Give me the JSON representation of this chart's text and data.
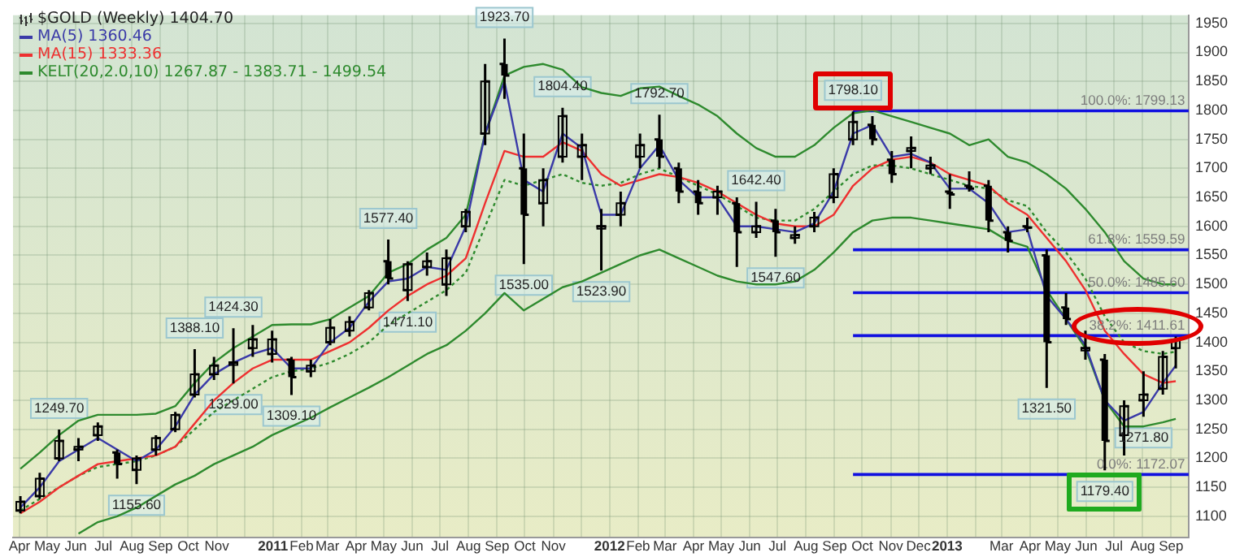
{
  "chart_data": {
    "type": "candlestick",
    "title": "$GOLD (Weekly) 1404.70",
    "x": [
      "2010-04-02",
      "2010-04-23",
      "2010-05-14",
      "2010-06-04",
      "2010-06-25",
      "2010-07-16",
      "2010-08-06",
      "2010-08-27",
      "2010-09-17",
      "2010-10-08",
      "2010-10-29",
      "2010-11-19",
      "2010-12-10",
      "2010-12-31",
      "2011-01-21",
      "2011-02-11",
      "2011-03-04",
      "2011-03-25",
      "2011-04-15",
      "2011-05-06",
      "2011-05-27",
      "2011-06-17",
      "2011-07-08",
      "2011-07-29",
      "2011-08-19",
      "2011-09-09",
      "2011-09-30",
      "2011-10-21",
      "2011-11-11",
      "2011-12-02",
      "2011-12-23",
      "2012-01-13",
      "2012-02-03",
      "2012-02-24",
      "2012-03-16",
      "2012-04-06",
      "2012-04-27",
      "2012-05-18",
      "2012-06-08",
      "2012-06-29",
      "2012-07-20",
      "2012-08-10",
      "2012-08-31",
      "2012-09-21",
      "2012-10-12",
      "2012-11-02",
      "2012-11-23",
      "2012-12-14",
      "2013-01-04",
      "2013-01-25",
      "2013-02-15",
      "2013-03-08",
      "2013-03-29",
      "2013-04-19",
      "2013-05-10",
      "2013-05-31",
      "2013-06-21",
      "2013-07-12",
      "2013-08-02",
      "2013-08-23",
      "2013-09-06"
    ],
    "ohlc": [
      [
        1110,
        1135,
        1105,
        1125
      ],
      [
        1135,
        1175,
        1130,
        1165
      ],
      [
        1200,
        1249.7,
        1195,
        1230
      ],
      [
        1215,
        1235,
        1195,
        1220
      ],
      [
        1240,
        1262,
        1230,
        1255
      ],
      [
        1210,
        1215,
        1165,
        1190
      ],
      [
        1180,
        1205,
        1155.6,
        1200
      ],
      [
        1215,
        1240,
        1205,
        1235
      ],
      [
        1250,
        1280,
        1245,
        1275
      ],
      [
        1310,
        1388.1,
        1305,
        1345
      ],
      [
        1345,
        1375,
        1335,
        1360
      ],
      [
        1365,
        1424.3,
        1329,
        1365
      ],
      [
        1390,
        1430,
        1375,
        1405
      ],
      [
        1380,
        1420,
        1365,
        1405
      ],
      [
        1370,
        1375,
        1309.1,
        1340
      ],
      [
        1350,
        1370,
        1340,
        1360
      ],
      [
        1400,
        1440,
        1395,
        1425
      ],
      [
        1420,
        1445,
        1410,
        1435
      ],
      [
        1460,
        1490,
        1455,
        1485
      ],
      [
        1540,
        1577.4,
        1500,
        1510
      ],
      [
        1490,
        1540,
        1471.1,
        1535
      ],
      [
        1530,
        1555,
        1515,
        1540
      ],
      [
        1500,
        1560,
        1480,
        1545
      ],
      [
        1600,
        1630,
        1590,
        1625
      ],
      [
        1760,
        1880,
        1740,
        1850
      ],
      [
        1880,
        1923.7,
        1820,
        1860
      ],
      [
        1700,
        1760,
        1535,
        1620
      ],
      [
        1640,
        1700,
        1600,
        1680
      ],
      [
        1720,
        1804.4,
        1710,
        1790
      ],
      [
        1720,
        1760,
        1680,
        1740
      ],
      [
        1600,
        1630,
        1523.9,
        1600
      ],
      [
        1620,
        1660,
        1600,
        1640
      ],
      [
        1720,
        1760,
        1700,
        1740
      ],
      [
        1750,
        1792.7,
        1700,
        1720
      ],
      [
        1700,
        1710,
        1640,
        1660
      ],
      [
        1660,
        1680,
        1620,
        1640
      ],
      [
        1650,
        1670,
        1620,
        1660
      ],
      [
        1640,
        1650,
        1530,
        1590
      ],
      [
        1590,
        1642.4,
        1580,
        1600
      ],
      [
        1610,
        1630,
        1547.6,
        1590
      ],
      [
        1580,
        1600,
        1570,
        1585
      ],
      [
        1600,
        1625,
        1590,
        1615
      ],
      [
        1650,
        1700,
        1640,
        1690
      ],
      [
        1750,
        1798.1,
        1740,
        1780
      ],
      [
        1775,
        1790,
        1740,
        1750
      ],
      [
        1715,
        1730,
        1675,
        1690
      ],
      [
        1730,
        1755,
        1700,
        1735
      ],
      [
        1700,
        1720,
        1690,
        1705
      ],
      [
        1660,
        1690,
        1630,
        1655
      ],
      [
        1670,
        1695,
        1660,
        1665
      ],
      [
        1670,
        1680,
        1590,
        1610
      ],
      [
        1590,
        1600,
        1555,
        1575
      ],
      [
        1600,
        1615,
        1590,
        1598
      ],
      [
        1550,
        1560,
        1321.5,
        1400
      ],
      [
        1460,
        1485,
        1430,
        1440
      ],
      [
        1390,
        1420,
        1370,
        1390
      ],
      [
        1370,
        1380,
        1179.4,
        1230
      ],
      [
        1240,
        1300,
        1205,
        1290
      ],
      [
        1300,
        1350,
        1271.8,
        1310
      ],
      [
        1320,
        1385,
        1310,
        1375
      ],
      [
        1390,
        1410,
        1355,
        1404.7
      ]
    ],
    "color": "#000000",
    "series": [
      {
        "name": "MA(5) 1360.46",
        "type": "line",
        "color": "#3a3aa8",
        "values": [
          1115,
          1150,
          1195,
          1215,
          1235,
          1215,
          1195,
          1215,
          1255,
          1310,
          1345,
          1365,
          1380,
          1390,
          1355,
          1355,
          1400,
          1425,
          1470,
          1505,
          1510,
          1530,
          1525,
          1600,
          1760,
          1850,
          1680,
          1660,
          1760,
          1735,
          1620,
          1620,
          1700,
          1740,
          1680,
          1650,
          1650,
          1600,
          1600,
          1595,
          1590,
          1605,
          1660,
          1760,
          1775,
          1720,
          1725,
          1710,
          1665,
          1665,
          1640,
          1590,
          1595,
          1480,
          1440,
          1395,
          1300,
          1265,
          1280,
          1330,
          1360
        ]
      },
      {
        "name": "MA(15) 1333.36",
        "type": "line",
        "color": "#ee3030",
        "values": [
          1105,
          1125,
          1150,
          1170,
          1190,
          1195,
          1200,
          1205,
          1220,
          1260,
          1300,
          1330,
          1355,
          1370,
          1370,
          1370,
          1385,
          1400,
          1425,
          1455,
          1480,
          1500,
          1515,
          1545,
          1640,
          1730,
          1720,
          1720,
          1745,
          1730,
          1690,
          1670,
          1680,
          1690,
          1685,
          1675,
          1660,
          1640,
          1620,
          1605,
          1600,
          1600,
          1620,
          1670,
          1700,
          1715,
          1720,
          1710,
          1690,
          1680,
          1670,
          1640,
          1620,
          1580,
          1540,
          1490,
          1420,
          1380,
          1345,
          1330,
          1333
        ]
      },
      {
        "name": "KELT(20,2.0,10) 1267.87 - 1383.71 - 1499.54",
        "type": "line",
        "color": "#2e8a2e",
        "values": [
          1182,
          1210,
          1240,
          1265,
          1275,
          1275,
          1275,
          1277,
          1290,
          1330,
          1365,
          1390,
          1410,
          1430,
          1431,
          1431,
          1440,
          1460,
          1480,
          1520,
          1535,
          1560,
          1580,
          1620,
          1760,
          1860,
          1875,
          1880,
          1870,
          1840,
          1830,
          1825,
          1838,
          1841,
          1825,
          1810,
          1790,
          1760,
          1735,
          1720,
          1720,
          1740,
          1770,
          1795,
          1800,
          1790,
          1780,
          1770,
          1760,
          1740,
          1750,
          1720,
          1710,
          1690,
          1665,
          1630,
          1590,
          1540,
          1510,
          1500,
          1500
        ]
      },
      {
        "type": "line",
        "color": "#2e8a2e",
        "line_style": "dotted",
        "values": [
          1110,
          1130,
          1150,
          1170,
          1185,
          1190,
          1195,
          1205,
          1220,
          1250,
          1280,
          1300,
          1320,
          1340,
          1350,
          1355,
          1365,
          1380,
          1400,
          1430,
          1450,
          1470,
          1490,
          1520,
          1600,
          1680,
          1670,
          1680,
          1690,
          1675,
          1670,
          1675,
          1690,
          1700,
          1685,
          1670,
          1655,
          1635,
          1615,
          1610,
          1610,
          1630,
          1660,
          1690,
          1705,
          1705,
          1700,
          1690,
          1680,
          1670,
          1665,
          1645,
          1635,
          1590,
          1555,
          1510,
          1445,
          1400,
          1385,
          1380,
          1384
        ]
      },
      {
        "type": "line",
        "color": "#2e8a2e",
        "values": [
          null,
          null,
          null,
          1070,
          1090,
          1100,
          1115,
          1135,
          1155,
          1170,
          1190,
          1205,
          1220,
          1240,
          1255,
          1270,
          1288,
          1305,
          1322,
          1340,
          1360,
          1380,
          1395,
          1420,
          1450,
          1485,
          1455,
          1475,
          1495,
          1505,
          1520,
          1535,
          1550,
          1560,
          1545,
          1530,
          1515,
          1505,
          1500,
          1500,
          1505,
          1525,
          1555,
          1590,
          1610,
          1615,
          1615,
          1610,
          1605,
          1600,
          1595,
          1575,
          1565,
          1490,
          1440,
          1390,
          1300,
          1255,
          1255,
          1262,
          1268
        ]
      },
      {
        "type": "line",
        "color": "#1010e0",
        "x": [
          "2012-09-21",
          "2013-09-20"
        ],
        "values": [
          1799.13,
          1799.13
        ]
      },
      {
        "type": "line",
        "color": "#1010e0",
        "x": [
          "2012-09-21",
          "2013-09-20"
        ],
        "values": [
          1559.59,
          1559.59
        ]
      },
      {
        "type": "line",
        "color": "#1010e0",
        "x": [
          "2012-09-21",
          "2013-09-20"
        ],
        "values": [
          1485.6,
          1485.6
        ]
      },
      {
        "type": "line",
        "color": "#1010e0",
        "x": [
          "2012-09-21",
          "2013-09-20"
        ],
        "values": [
          1411.61,
          1411.61
        ]
      },
      {
        "type": "line",
        "color": "#1010e0",
        "x": [
          "2012-09-21",
          "2013-09-20"
        ],
        "values": [
          1172.07,
          1172.07
        ]
      }
    ],
    "annotations": [
      {
        "text": "1249.70",
        "x": "2010-05-14",
        "y": 1249.7
      },
      {
        "text": "1155.60",
        "x": "2010-08-06",
        "y": 1155.6
      },
      {
        "text": "1388.10",
        "x": "2010-10-08",
        "y": 1388.1
      },
      {
        "text": "1424.30",
        "x": "2010-11-19",
        "y": 1424.3
      },
      {
        "text": "1329.00",
        "x": "2010-11-19",
        "y": 1329
      },
      {
        "text": "1309.10",
        "x": "2011-01-21",
        "y": 1309.1
      },
      {
        "text": "1577.40",
        "x": "2011-05-06",
        "y": 1577.4
      },
      {
        "text": "1471.10",
        "x": "2011-05-27",
        "y": 1471.1
      },
      {
        "text": "1923.70",
        "x": "2011-09-09",
        "y": 1923.7
      },
      {
        "text": "1535.00",
        "x": "2011-09-30",
        "y": 1535
      },
      {
        "text": "1804.40",
        "x": "2011-11-11",
        "y": 1804.4
      },
      {
        "text": "1523.90",
        "x": "2011-12-23",
        "y": 1523.9
      },
      {
        "text": "1792.70",
        "x": "2012-02-24",
        "y": 1792.7
      },
      {
        "text": "1642.40",
        "x": "2012-06-08",
        "y": 1642.4
      },
      {
        "text": "1547.60",
        "x": "2012-06-29",
        "y": 1547.6
      },
      {
        "text": "1798.10",
        "x": "2012-09-21",
        "y": 1798.1
      },
      {
        "text": "1321.50",
        "x": "2013-04-19",
        "y": 1321.5
      },
      {
        "text": "1179.40",
        "x": "2013-06-21",
        "y": 1179.4
      },
      {
        "text": "1271.80",
        "x": "2013-08-02",
        "y": 1271.8
      },
      {
        "text": "100.0%: 1799.13",
        "x": "2013-09-16",
        "y": 1799.13
      },
      {
        "text": "61.8%: 1559.59",
        "x": "2013-09-16",
        "y": 1559.59
      },
      {
        "text": "50.0%: 1485.60",
        "x": "2013-09-16",
        "y": 1485.6
      },
      {
        "text": "38.2%: 1411.61",
        "x": "2013-09-16",
        "y": 1411.61
      },
      {
        "text": "0.0%: 1172.07",
        "x": "2013-09-16",
        "y": 1172.07
      }
    ],
    "xlim": [
      "2010-03-25",
      "2013-09-20"
    ],
    "xticks": [
      {
        "value": "2010-04-01",
        "label": "Apr"
      },
      {
        "value": "2010-05-01",
        "label": "May"
      },
      {
        "value": "2010-06-01",
        "label": "Jun"
      },
      {
        "value": "2010-07-01",
        "label": "Jul"
      },
      {
        "value": "2010-08-01",
        "label": "Aug"
      },
      {
        "value": "2010-09-01",
        "label": "Sep"
      },
      {
        "value": "2010-10-01",
        "label": "Oct"
      },
      {
        "value": "2010-11-01",
        "label": "Nov"
      },
      {
        "value": "2010-12-01",
        "label": null
      },
      {
        "value": "2011-01-01",
        "label": "2011"
      },
      {
        "value": "2011-02-01",
        "label": "Feb"
      },
      {
        "value": "2011-03-01",
        "label": "Mar"
      },
      {
        "value": "2011-04-01",
        "label": "Apr"
      },
      {
        "value": "2011-05-01",
        "label": "May"
      },
      {
        "value": "2011-06-01",
        "label": "Jun"
      },
      {
        "value": "2011-07-01",
        "label": "Jul"
      },
      {
        "value": "2011-08-01",
        "label": "Aug"
      },
      {
        "value": "2011-09-01",
        "label": "Sep"
      },
      {
        "value": "2011-10-01",
        "label": "Oct"
      },
      {
        "value": "2011-11-01",
        "label": "Nov"
      },
      {
        "value": "2011-12-01",
        "label": null
      },
      {
        "value": "2012-01-01",
        "label": "2012"
      },
      {
        "value": "2012-02-01",
        "label": "Feb"
      },
      {
        "value": "2012-03-01",
        "label": "Mar"
      },
      {
        "value": "2012-04-01",
        "label": "Apr"
      },
      {
        "value": "2012-05-01",
        "label": "May"
      },
      {
        "value": "2012-06-01",
        "label": "Jun"
      },
      {
        "value": "2012-07-01",
        "label": "Jul"
      },
      {
        "value": "2012-08-01",
        "label": "Aug"
      },
      {
        "value": "2012-09-01",
        "label": "Sep"
      },
      {
        "value": "2012-10-01",
        "label": "Oct"
      },
      {
        "value": "2012-11-01",
        "label": "Nov"
      },
      {
        "value": "2012-12-01",
        "label": "Dec"
      },
      {
        "value": "2013-01-01",
        "label": "2013"
      },
      {
        "value": "2013-02-01",
        "label": null
      },
      {
        "value": "2013-03-01",
        "label": "Mar"
      },
      {
        "value": "2013-04-01",
        "label": "Apr"
      },
      {
        "value": "2013-05-01",
        "label": "May"
      },
      {
        "value": "2013-06-01",
        "label": "Jun"
      },
      {
        "value": "2013-07-01",
        "label": "Jul"
      },
      {
        "value": "2013-08-01",
        "label": "Aug"
      },
      {
        "value": "2013-09-01",
        "label": "Sep"
      }
    ],
    "ylim": [
      1064,
      1964
    ],
    "yticks": [
      1100,
      1150,
      1200,
      1250,
      1300,
      1350,
      1400,
      1450,
      1500,
      1550,
      1600,
      1650,
      1700,
      1750,
      1800,
      1850,
      1900,
      1950
    ],
    "grid": true,
    "legend": "top left",
    "marker": "none",
    "line_style": "solid"
  }
}
